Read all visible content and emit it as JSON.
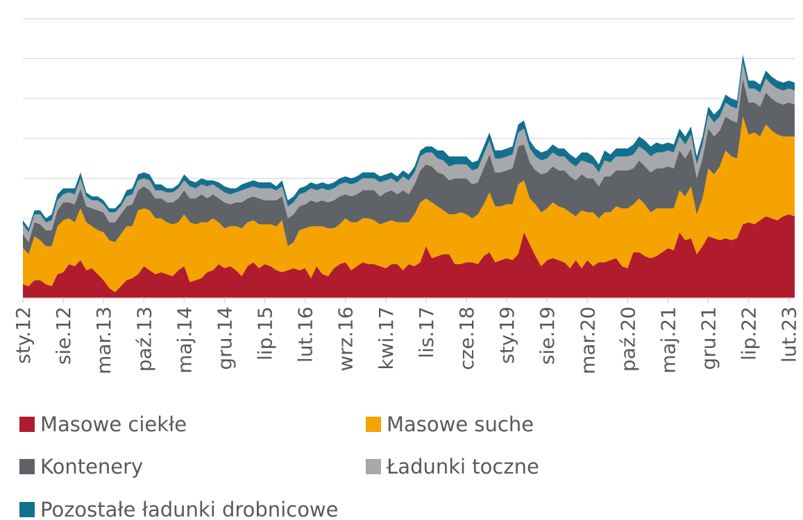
{
  "chart_data": {
    "type": "stacked_area",
    "categories": [
      "sty.12",
      null,
      null,
      null,
      null,
      null,
      null,
      "sie.12",
      null,
      null,
      null,
      null,
      null,
      null,
      "mar.13",
      null,
      null,
      null,
      null,
      null,
      null,
      "paź.13",
      null,
      null,
      null,
      null,
      null,
      null,
      "maj.14",
      null,
      null,
      null,
      null,
      null,
      null,
      "gru.14",
      null,
      null,
      null,
      null,
      null,
      null,
      "lip.15",
      null,
      null,
      null,
      null,
      null,
      null,
      "lut.16",
      null,
      null,
      null,
      null,
      null,
      null,
      "wrz.16",
      null,
      null,
      null,
      null,
      null,
      null,
      "kwi.17",
      null,
      null,
      null,
      null,
      null,
      null,
      "lis.17",
      null,
      null,
      null,
      null,
      null,
      null,
      "cze.18",
      null,
      null,
      null,
      null,
      null,
      null,
      "sty.19",
      null,
      null,
      null,
      null,
      null,
      null,
      "sie.19",
      null,
      null,
      null,
      null,
      null,
      null,
      "mar.20",
      null,
      null,
      null,
      null,
      null,
      null,
      "paź.20",
      null,
      null,
      null,
      null,
      null,
      null,
      "maj.21",
      null,
      null,
      null,
      null,
      null,
      null,
      "gru.21",
      null,
      null,
      null,
      null,
      null,
      null,
      "lip.22",
      null,
      null,
      null,
      null,
      null,
      null,
      "lut.23",
      null
    ],
    "ylim": [
      0,
      7
    ],
    "yticks": [
      0,
      1,
      2,
      3,
      4,
      5,
      6,
      7
    ],
    "grid": true,
    "legend": "bottom",
    "series": [
      {
        "name": "Masowe ciekłe",
        "color": "#b01c2e",
        "values": [
          0.35,
          0.3,
          0.45,
          0.45,
          0.35,
          0.3,
          0.6,
          0.65,
          0.85,
          0.8,
          0.95,
          0.7,
          0.75,
          0.6,
          0.45,
          0.25,
          0.15,
          0.3,
          0.45,
          0.5,
          0.6,
          0.8,
          0.7,
          0.6,
          0.65,
          0.6,
          0.55,
          0.7,
          0.8,
          0.4,
          0.45,
          0.5,
          0.65,
          0.7,
          0.85,
          0.75,
          0.8,
          0.7,
          0.55,
          0.8,
          0.9,
          0.75,
          0.85,
          0.8,
          0.7,
          0.65,
          0.7,
          0.75,
          0.7,
          0.75,
          0.5,
          0.8,
          0.6,
          0.55,
          0.75,
          0.85,
          0.9,
          0.7,
          0.8,
          0.9,
          0.85,
          0.85,
          0.8,
          0.75,
          0.85,
          0.85,
          0.7,
          0.85,
          0.8,
          0.9,
          1.3,
          1.0,
          1.05,
          1.1,
          1.1,
          0.85,
          0.85,
          0.9,
          0.9,
          0.85,
          1.05,
          1.15,
          0.9,
          0.95,
          1.0,
          0.95,
          1.1,
          1.65,
          1.35,
          1.05,
          0.8,
          0.95,
          1.0,
          0.95,
          0.9,
          0.75,
          0.95,
          0.75,
          0.95,
          0.8,
          0.9,
          0.9,
          0.95,
          1.0,
          0.8,
          0.75,
          1.15,
          1.15,
          1.05,
          1.0,
          1.05,
          1.15,
          1.25,
          1.2,
          1.65,
          1.45,
          1.5,
          1.1,
          1.3,
          1.55,
          1.5,
          1.45,
          1.5,
          1.45,
          1.5,
          1.85,
          1.9,
          1.85,
          1.95,
          2.05,
          2.0,
          1.95,
          2.05,
          2.1,
          2.05
        ]
      },
      {
        "name": "Masowe suche",
        "color": "#f5a300",
        "values": [
          0.9,
          0.8,
          1.1,
          1.0,
          0.95,
          1.0,
          1.2,
          1.3,
          1.15,
          1.1,
          1.3,
          1.2,
          1.05,
          1.1,
          1.2,
          1.2,
          1.25,
          1.3,
          1.35,
          1.3,
          1.6,
          1.45,
          1.5,
          1.4,
          1.35,
          1.3,
          1.3,
          1.2,
          1.3,
          1.5,
          1.4,
          1.4,
          1.25,
          1.3,
          1.05,
          1.0,
          1.0,
          1.1,
          1.2,
          1.1,
          1.05,
          1.1,
          1.0,
          1.05,
          1.1,
          1.3,
          0.6,
          0.65,
          1.0,
          1.0,
          1.3,
          1.0,
          1.2,
          1.2,
          1.0,
          1.0,
          1.1,
          1.2,
          1.1,
          1.1,
          1.15,
          1.1,
          1.05,
          1.15,
          1.1,
          1.05,
          1.2,
          1.05,
          1.3,
          1.5,
          1.2,
          1.4,
          1.25,
          1.1,
          1.0,
          1.25,
          1.3,
          1.2,
          1.1,
          1.25,
          1.3,
          1.5,
          1.4,
          1.35,
          1.35,
          1.4,
          1.75,
          1.3,
          1.15,
          1.3,
          1.35,
          1.3,
          1.4,
          1.35,
          1.35,
          1.4,
          1.1,
          1.45,
          1.2,
          1.35,
          1.1,
          1.25,
          1.2,
          1.3,
          1.45,
          1.5,
          1.2,
          1.35,
          1.3,
          1.15,
          1.2,
          1.1,
          1.0,
          1.05,
          1.05,
          1.1,
          1.3,
          1.0,
          1.2,
          1.7,
          1.6,
          1.85,
          2.2,
          2.1,
          2.0,
          2.7,
          2.2,
          2.3,
          2.1,
          2.3,
          2.2,
          2.15,
          2.0,
          1.95,
          2.0
        ]
      },
      {
        "name": "Kontenery",
        "color": "#5f6266",
        "values": [
          0.35,
          0.3,
          0.35,
          0.4,
          0.4,
          0.4,
          0.4,
          0.45,
          0.4,
          0.45,
          0.5,
          0.4,
          0.45,
          0.5,
          0.5,
          0.45,
          0.5,
          0.5,
          0.5,
          0.55,
          0.5,
          0.55,
          0.5,
          0.5,
          0.5,
          0.5,
          0.55,
          0.6,
          0.6,
          0.6,
          0.65,
          0.7,
          0.6,
          0.6,
          0.6,
          0.65,
          0.55,
          0.6,
          0.65,
          0.6,
          0.6,
          0.65,
          0.6,
          0.6,
          0.65,
          0.6,
          0.7,
          0.7,
          0.6,
          0.6,
          0.65,
          0.6,
          0.65,
          0.65,
          0.7,
          0.7,
          0.6,
          0.65,
          0.7,
          0.7,
          0.7,
          0.75,
          0.7,
          0.75,
          0.75,
          0.7,
          0.8,
          0.7,
          0.75,
          0.8,
          0.85,
          0.9,
          0.85,
          0.9,
          0.85,
          0.9,
          0.85,
          0.9,
          0.85,
          0.8,
          0.9,
          0.95,
          0.85,
          0.85,
          0.85,
          0.9,
          0.95,
          0.9,
          0.9,
          0.85,
          0.95,
          0.9,
          0.9,
          0.9,
          0.95,
          0.9,
          0.9,
          0.9,
          0.85,
          0.85,
          0.8,
          0.9,
          0.9,
          0.9,
          0.95,
          0.95,
          0.9,
          0.95,
          0.95,
          1.0,
          1.0,
          1.0,
          1.05,
          1.0,
          1.0,
          0.95,
          0.95,
          0.9,
          1.0,
          1.0,
          0.95,
          0.9,
          0.85,
          0.9,
          0.9,
          0.95,
          0.8,
          0.75,
          0.75,
          0.8,
          0.8,
          0.8,
          0.8,
          0.85,
          0.8
        ]
      },
      {
        "name": "Ładunki toczne",
        "color": "#a6a8ab",
        "values": [
          0.25,
          0.25,
          0.2,
          0.25,
          0.2,
          0.25,
          0.25,
          0.2,
          0.25,
          0.25,
          0.25,
          0.25,
          0.2,
          0.25,
          0.2,
          0.25,
          0.25,
          0.2,
          0.25,
          0.25,
          0.25,
          0.2,
          0.25,
          0.2,
          0.2,
          0.25,
          0.25,
          0.25,
          0.25,
          0.3,
          0.25,
          0.25,
          0.3,
          0.25,
          0.25,
          0.25,
          0.25,
          0.25,
          0.3,
          0.25,
          0.25,
          0.25,
          0.3,
          0.3,
          0.25,
          0.25,
          0.3,
          0.3,
          0.3,
          0.3,
          0.3,
          0.3,
          0.3,
          0.3,
          0.3,
          0.3,
          0.3,
          0.3,
          0.3,
          0.3,
          0.3,
          0.3,
          0.35,
          0.3,
          0.3,
          0.3,
          0.35,
          0.35,
          0.3,
          0.35,
          0.3,
          0.35,
          0.35,
          0.35,
          0.35,
          0.35,
          0.35,
          0.35,
          0.35,
          0.35,
          0.35,
          0.35,
          0.35,
          0.35,
          0.35,
          0.35,
          0.35,
          0.4,
          0.35,
          0.35,
          0.35,
          0.35,
          0.35,
          0.35,
          0.35,
          0.35,
          0.35,
          0.35,
          0.4,
          0.35,
          0.35,
          0.4,
          0.35,
          0.35,
          0.35,
          0.35,
          0.35,
          0.35,
          0.4,
          0.4,
          0.4,
          0.4,
          0.4,
          0.4,
          0.35,
          0.35,
          0.35,
          0.35,
          0.35,
          0.35,
          0.35,
          0.35,
          0.35,
          0.35,
          0.35,
          0.4,
          0.35,
          0.35,
          0.35,
          0.35,
          0.35,
          0.35,
          0.35,
          0.35,
          0.35
        ]
      },
      {
        "name": "Pozostałe ładunki drobnicowe",
        "color": "#12708e",
        "values": [
          0.1,
          0.1,
          0.1,
          0.1,
          0.1,
          0.15,
          0.15,
          0.15,
          0.1,
          0.15,
          0.15,
          0.1,
          0.1,
          0.1,
          0.1,
          0.1,
          0.1,
          0.1,
          0.15,
          0.15,
          0.15,
          0.15,
          0.15,
          0.15,
          0.15,
          0.1,
          0.1,
          0.1,
          0.15,
          0.15,
          0.15,
          0.15,
          0.15,
          0.1,
          0.15,
          0.15,
          0.15,
          0.1,
          0.15,
          0.15,
          0.15,
          0.15,
          0.15,
          0.15,
          0.1,
          0.15,
          0.15,
          0.15,
          0.15,
          0.15,
          0.15,
          0.15,
          0.15,
          0.15,
          0.15,
          0.15,
          0.15,
          0.15,
          0.15,
          0.15,
          0.15,
          0.15,
          0.15,
          0.15,
          0.15,
          0.15,
          0.15,
          0.15,
          0.15,
          0.15,
          0.15,
          0.15,
          0.2,
          0.25,
          0.25,
          0.2,
          0.2,
          0.2,
          0.2,
          0.2,
          0.2,
          0.2,
          0.2,
          0.2,
          0.2,
          0.2,
          0.2,
          0.2,
          0.2,
          0.2,
          0.2,
          0.2,
          0.2,
          0.2,
          0.2,
          0.2,
          0.2,
          0.2,
          0.25,
          0.2,
          0.2,
          0.25,
          0.2,
          0.2,
          0.2,
          0.2,
          0.25,
          0.25,
          0.25,
          0.25,
          0.25,
          0.2,
          0.2,
          0.2,
          0.2,
          0.2,
          0.2,
          0.2,
          0.2,
          0.2,
          0.2,
          0.2,
          0.2,
          0.2,
          0.2,
          0.2,
          0.2,
          0.2,
          0.2,
          0.2,
          0.2,
          0.2,
          0.2,
          0.2,
          0.2
        ]
      }
    ]
  }
}
